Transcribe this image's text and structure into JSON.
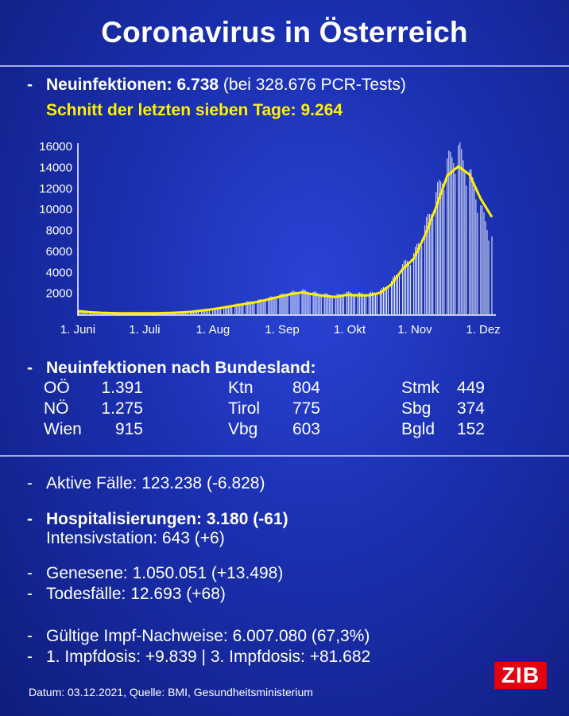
{
  "title": "Coronavirus in Österreich",
  "summary": {
    "neu_label": "Neuinfektionen: 6.738",
    "neu_tests": " (bei 328.676 PCR-Tests)",
    "schnitt": "Schnitt der letzten sieben Tage: 9.264"
  },
  "chart_data": {
    "type": "bar",
    "y_ticks": [
      "16000",
      "14000",
      "12000",
      "10000",
      "8000",
      "6000",
      "4000",
      "2000"
    ],
    "ylim": [
      0,
      16000
    ],
    "x_ticks": [
      "1. Juni",
      "1. Juli",
      "1. Aug",
      "1. Sep",
      "1. Okt",
      "1. Nov",
      "1. Dez"
    ],
    "series": [
      {
        "description": "daily new infections (bars)",
        "weekly_levels": [
          350,
          230,
          160,
          130,
          110,
          100,
          100,
          110,
          140,
          180,
          250,
          380,
          520,
          700,
          900,
          1100,
          1250,
          1500,
          1750,
          2000,
          2200,
          2000,
          1850,
          1700,
          2000,
          1900,
          1900,
          2150,
          3000,
          4500,
          5500,
          8000,
          11000,
          14000,
          15200,
          13000,
          9800,
          7000
        ]
      },
      {
        "description": "seven-day average (yellow line)",
        "weekly_levels": [
          300,
          200,
          140,
          110,
          95,
          90,
          90,
          100,
          125,
          165,
          230,
          350,
          480,
          650,
          830,
          1000,
          1180,
          1420,
          1680,
          1920,
          2080,
          1900,
          1750,
          1650,
          1850,
          1800,
          1800,
          2050,
          2850,
          4300,
          5300,
          7500,
          10200,
          13200,
          14100,
          13300,
          11000,
          9264
        ]
      }
    ]
  },
  "bundesland": {
    "header": "Neuinfektionen nach Bundesland:",
    "items": [
      {
        "name": "OÖ",
        "value": "1.391"
      },
      {
        "name": "Ktn",
        "value": "804"
      },
      {
        "name": "Stmk",
        "value": "449"
      },
      {
        "name": "NÖ",
        "value": "1.275"
      },
      {
        "name": "Tirol",
        "value": "775"
      },
      {
        "name": "Sbg",
        "value": "374"
      },
      {
        "name": "Wien",
        "value": "915"
      },
      {
        "name": "Vbg",
        "value": "603"
      },
      {
        "name": "Bgld",
        "value": "152"
      }
    ]
  },
  "stats": {
    "aktive": "Aktive Fälle: 123.238 (-6.828)",
    "hosp": "Hospitalisierungen: 3.180 (-61)",
    "intensiv": "Intensivstation: 643 (+6)",
    "genesene": "Genesene: 1.050.051 (+13.498)",
    "todesfaelle": "Todesfälle: 12.693 (+68)",
    "impf": "Gültige Impf-Nachweise: 6.007.080 (67,3%)",
    "dosis": "1. Impfdosis: +9.839 | 3. Impfdosis: +81.682"
  },
  "dash": "-",
  "footer": "Datum: 03.12.2021, Quelle: BMI, Gesundheitsministerium",
  "logo": "ZIB"
}
